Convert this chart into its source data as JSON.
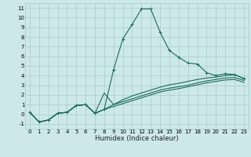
{
  "xlabel": "Humidex (Indice chaleur)",
  "bg_color": "#cde8e8",
  "grid_color": "#a8cccc",
  "line_color": "#1a6b5a",
  "xlim": [
    -0.5,
    23.5
  ],
  "ylim": [
    -1.5,
    11.5
  ],
  "xticks": [
    0,
    1,
    2,
    3,
    4,
    5,
    6,
    7,
    8,
    9,
    10,
    11,
    12,
    13,
    14,
    15,
    16,
    17,
    18,
    19,
    20,
    21,
    22,
    23
  ],
  "yticks": [
    -1,
    0,
    1,
    2,
    3,
    4,
    5,
    6,
    7,
    8,
    9,
    10,
    11
  ],
  "main_x": [
    0,
    1,
    2,
    3,
    4,
    5,
    6,
    7,
    8,
    9,
    10,
    11,
    12,
    13,
    14,
    15,
    16,
    17,
    18,
    19,
    20,
    21,
    22,
    23
  ],
  "main_y": [
    0.2,
    -0.8,
    -0.6,
    0.1,
    0.2,
    0.9,
    1.0,
    0.1,
    0.5,
    4.6,
    7.8,
    9.3,
    10.9,
    10.9,
    8.5,
    6.6,
    5.9,
    5.3,
    5.2,
    4.3,
    4.0,
    4.2,
    4.1,
    3.7
  ],
  "line2_x": [
    0,
    1,
    2,
    3,
    4,
    5,
    6,
    7,
    8,
    9,
    10,
    11,
    12,
    13,
    14,
    15,
    16,
    17,
    18,
    19,
    20,
    21,
    22,
    23
  ],
  "line2_y": [
    0.2,
    -0.8,
    -0.6,
    0.1,
    0.2,
    0.9,
    1.0,
    0.1,
    0.5,
    1.0,
    1.5,
    1.9,
    2.2,
    2.5,
    2.8,
    3.05,
    3.2,
    3.4,
    3.6,
    3.75,
    3.85,
    4.0,
    4.1,
    3.7
  ],
  "line3_x": [
    0,
    1,
    2,
    3,
    4,
    5,
    6,
    7,
    8,
    9,
    10,
    11,
    12,
    13,
    14,
    15,
    16,
    17,
    18,
    19,
    20,
    21,
    22,
    23
  ],
  "line3_y": [
    0.2,
    -0.8,
    -0.6,
    0.1,
    0.2,
    0.9,
    1.0,
    0.1,
    2.2,
    1.0,
    1.3,
    1.6,
    1.9,
    2.2,
    2.5,
    2.7,
    2.85,
    3.0,
    3.25,
    3.45,
    3.6,
    3.75,
    3.8,
    3.5
  ],
  "line4_x": [
    0,
    1,
    2,
    3,
    4,
    5,
    6,
    7,
    8,
    9,
    10,
    11,
    12,
    13,
    14,
    15,
    16,
    17,
    18,
    19,
    20,
    21,
    22,
    23
  ],
  "line4_y": [
    0.2,
    -0.8,
    -0.6,
    0.1,
    0.2,
    0.9,
    1.0,
    0.1,
    0.5,
    0.8,
    1.1,
    1.4,
    1.7,
    2.0,
    2.3,
    2.5,
    2.65,
    2.85,
    3.05,
    3.25,
    3.4,
    3.55,
    3.6,
    3.3
  ],
  "tick_fontsize": 5.0,
  "xlabel_fontsize": 6.0
}
